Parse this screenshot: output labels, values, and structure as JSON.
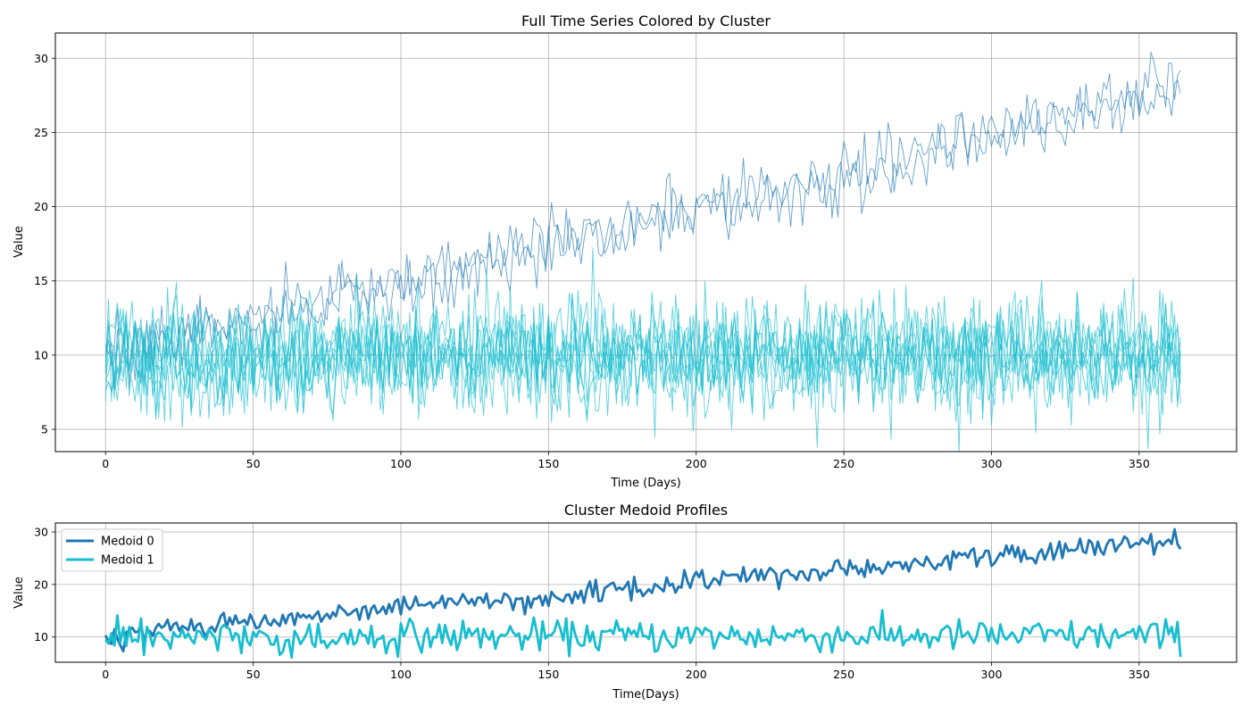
{
  "colors": {
    "cluster_0": "#1f77b4",
    "cluster_1": "#17becf",
    "grid": "#b0b0b0",
    "axis": "#000000"
  },
  "chart_data": [
    {
      "type": "line",
      "title": "Full Time Series Colored by Cluster",
      "xlabel": "Time (Days)",
      "ylabel": "Value",
      "xlim": [
        -17,
        383
      ],
      "ylim": [
        3.5,
        31.7
      ],
      "xticks": [
        0,
        50,
        100,
        150,
        200,
        250,
        300,
        350
      ],
      "yticks": [
        5,
        10,
        15,
        20,
        25,
        30
      ],
      "grid": true,
      "legend": "none",
      "n_points": 365,
      "series": [
        {
          "cluster": 0,
          "start": 10,
          "end": 28,
          "noise": 1.1,
          "seed": 11
        },
        {
          "cluster": 0,
          "start": 10,
          "end": 28,
          "noise": 1.1,
          "seed": 12
        },
        {
          "cluster": 1,
          "mean": 10,
          "noise": 1.8,
          "seed": 21
        },
        {
          "cluster": 1,
          "mean": 10,
          "noise": 1.8,
          "seed": 22
        },
        {
          "cluster": 1,
          "mean": 10,
          "noise": 1.8,
          "seed": 23
        },
        {
          "cluster": 1,
          "mean": 10,
          "noise": 1.8,
          "seed": 24
        },
        {
          "cluster": 1,
          "mean": 10,
          "noise": 1.8,
          "seed": 25
        },
        {
          "cluster": 1,
          "mean": 10,
          "noise": 1.8,
          "seed": 26
        },
        {
          "cluster": 1,
          "mean": 10,
          "noise": 1.8,
          "seed": 27
        },
        {
          "cluster": 1,
          "mean": 10,
          "noise": 1.8,
          "seed": 28
        }
      ]
    },
    {
      "type": "line",
      "title": "Cluster Medoid Profiles",
      "xlabel": "Time(Days)",
      "ylabel": "Value",
      "xlim": [
        -17,
        383
      ],
      "ylim": [
        5.2,
        31.7
      ],
      "xticks": [
        0,
        50,
        100,
        150,
        200,
        250,
        300,
        350
      ],
      "yticks": [
        10,
        20,
        30
      ],
      "grid": true,
      "legend": "top-left",
      "n_points": 365,
      "series": [
        {
          "name": "Medoid 0",
          "cluster": 0,
          "start": 10.5,
          "end": 28.5,
          "noise": 1.0,
          "seed": 31
        },
        {
          "name": "Medoid 1",
          "cluster": 1,
          "mean": 10.2,
          "noise": 1.5,
          "seed": 41
        }
      ]
    }
  ]
}
